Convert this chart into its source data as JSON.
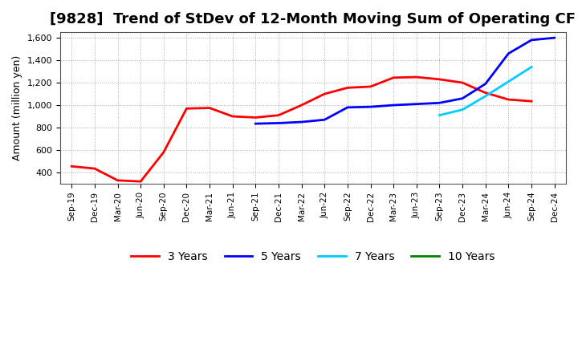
{
  "title": "[9828]  Trend of StDev of 12-Month Moving Sum of Operating CF",
  "ylabel": "Amount (million yen)",
  "ylim": [
    300,
    1650
  ],
  "yticks": [
    400,
    600,
    800,
    1000,
    1200,
    1400,
    1600
  ],
  "ytick_labels": [
    "400",
    "600",
    "800",
    "1,000",
    "1,200",
    "1,400",
    "1,600"
  ],
  "x_labels": [
    "Sep-19",
    "Dec-19",
    "Mar-20",
    "Jun-20",
    "Sep-20",
    "Dec-20",
    "Mar-21",
    "Jun-21",
    "Sep-21",
    "Dec-21",
    "Mar-22",
    "Jun-22",
    "Sep-22",
    "Dec-22",
    "Mar-23",
    "Jun-23",
    "Sep-23",
    "Dec-23",
    "Mar-24",
    "Jun-24",
    "Sep-24",
    "Dec-24"
  ],
  "series_3y": {
    "label": "3 Years",
    "color": "#ff0000",
    "x": [
      0,
      1,
      2,
      3,
      4,
      5,
      6,
      7,
      8,
      9,
      10,
      11,
      12,
      13,
      14,
      15,
      16,
      17,
      18,
      19,
      20
    ],
    "y": [
      455,
      435,
      330,
      320,
      580,
      970,
      975,
      900,
      890,
      910,
      1000,
      1100,
      1155,
      1165,
      1245,
      1250,
      1230,
      1200,
      1110,
      1050,
      1035
    ]
  },
  "series_5y": {
    "label": "5 Years",
    "color": "#0000ff",
    "x": [
      8,
      9,
      10,
      11,
      12,
      13,
      14,
      15,
      16,
      17,
      18,
      19,
      20,
      21
    ],
    "y": [
      835,
      840,
      850,
      870,
      980,
      985,
      1000,
      1010,
      1020,
      1060,
      1190,
      1460,
      1580,
      1600
    ]
  },
  "series_7y": {
    "label": "7 Years",
    "color": "#00ccff",
    "x": [
      16,
      17,
      18,
      19,
      20
    ],
    "y": [
      910,
      960,
      1080,
      1210,
      1340
    ]
  },
  "series_10y": {
    "label": "10 Years",
    "color": "#008000",
    "x": [],
    "y": []
  },
  "background_color": "#ffffff",
  "grid_color": "#aaaaaa",
  "title_fontsize": 13,
  "legend_fontsize": 10
}
